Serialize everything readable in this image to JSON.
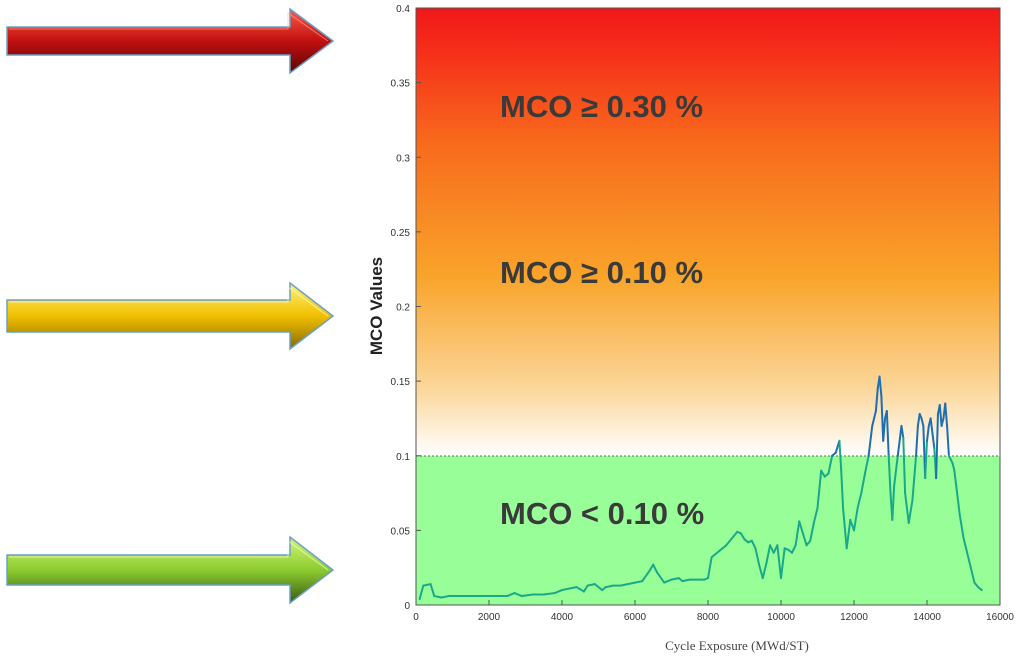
{
  "colors": {
    "danger": "#f01818",
    "warning": "#f5a623",
    "ok_band": "#98ff98",
    "line_low": "#1aa88a",
    "line_high": "#1f6fb0",
    "arrow_red": "#c01010",
    "arrow_yellow": "#f0c000",
    "arrow_green": "#8ccc30"
  },
  "icons": [
    "arrow-right-red-icon",
    "arrow-right-yellow-icon",
    "arrow-right-green-icon"
  ],
  "chart_data": {
    "type": "line",
    "title": "",
    "xlabel": "Cycle Exposure (MWd/ST)",
    "ylabel": "MCO Values",
    "xlim": [
      0,
      16000
    ],
    "ylim": [
      0,
      0.4
    ],
    "xticks": [
      0,
      2000,
      4000,
      6000,
      8000,
      10000,
      12000,
      14000,
      16000
    ],
    "yticks": [
      0,
      0.05,
      0.1,
      0.15,
      0.2,
      0.25,
      0.3,
      0.35,
      0.4
    ],
    "grid": false,
    "threshold": 0.1,
    "annotations": [
      "MCO ≥ 0.30 %",
      "MCO ≥ 0.10 %",
      "MCO < 0.10 %"
    ],
    "series": [
      {
        "x": [
          100,
          200,
          400,
          500,
          700,
          900,
          1200,
          1500,
          1800,
          2200,
          2500,
          2700,
          2900,
          3200,
          3500,
          3800,
          4000,
          4200,
          4400,
          4600,
          4700,
          4900,
          5100,
          5200,
          5400,
          5600,
          5800,
          6000,
          6200,
          6400,
          6500,
          6600,
          6800,
          7000,
          7200,
          7300,
          7500,
          7700,
          7900,
          8000,
          8100,
          8300,
          8500,
          8700,
          8800,
          8900,
          9000,
          9100,
          9200,
          9300,
          9400,
          9500,
          9600,
          9700,
          9800,
          9900,
          10000,
          10100,
          10200,
          10300,
          10400,
          10500,
          10600,
          10700,
          10800,
          10900,
          11000,
          11100,
          11200,
          11300,
          11400,
          11500,
          11600,
          11650,
          11700,
          11800,
          11900,
          12000,
          12100,
          12200,
          12300,
          12400,
          12500,
          12600,
          12650,
          12700,
          12750,
          12800,
          12850,
          12900,
          12950,
          13000,
          13050,
          13100,
          13200,
          13300,
          13350,
          13400,
          13500,
          13600,
          13700,
          13750,
          13800,
          13850,
          13900,
          13950,
          14000,
          14050,
          14100,
          14150,
          14200,
          14250,
          14300,
          14350,
          14400,
          14450,
          14500,
          14550,
          14600,
          14700,
          14750,
          14800,
          14900,
          15000,
          15100,
          15200,
          15300,
          15400,
          15500
        ],
        "y": [
          0.004,
          0.013,
          0.014,
          0.006,
          0.005,
          0.006,
          0.006,
          0.006,
          0.006,
          0.006,
          0.006,
          0.008,
          0.006,
          0.007,
          0.007,
          0.008,
          0.01,
          0.011,
          0.012,
          0.009,
          0.013,
          0.014,
          0.01,
          0.012,
          0.013,
          0.013,
          0.014,
          0.015,
          0.016,
          0.023,
          0.027,
          0.022,
          0.015,
          0.017,
          0.018,
          0.016,
          0.017,
          0.017,
          0.017,
          0.018,
          0.032,
          0.036,
          0.04,
          0.046,
          0.049,
          0.048,
          0.044,
          0.042,
          0.043,
          0.038,
          0.027,
          0.018,
          0.028,
          0.04,
          0.035,
          0.04,
          0.018,
          0.038,
          0.037,
          0.035,
          0.04,
          0.056,
          0.048,
          0.04,
          0.043,
          0.055,
          0.065,
          0.09,
          0.086,
          0.088,
          0.1,
          0.102,
          0.11,
          0.09,
          0.065,
          0.038,
          0.057,
          0.05,
          0.065,
          0.075,
          0.088,
          0.1,
          0.12,
          0.13,
          0.145,
          0.153,
          0.14,
          0.11,
          0.125,
          0.13,
          0.1,
          0.075,
          0.057,
          0.08,
          0.1,
          0.12,
          0.112,
          0.075,
          0.055,
          0.07,
          0.1,
          0.12,
          0.128,
          0.125,
          0.12,
          0.085,
          0.11,
          0.12,
          0.125,
          0.115,
          0.105,
          0.085,
          0.128,
          0.134,
          0.12,
          0.125,
          0.135,
          0.12,
          0.1,
          0.095,
          0.09,
          0.08,
          0.06,
          0.045,
          0.035,
          0.025,
          0.015,
          0.012,
          0.01
        ]
      }
    ]
  }
}
